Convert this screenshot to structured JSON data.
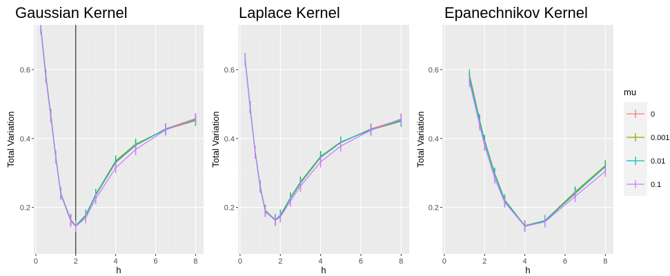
{
  "chart_data": [
    {
      "type": "line",
      "title": "Gaussian Kernel",
      "xlabel": "h",
      "ylabel": "Total Variation",
      "xlim": [
        -0.1,
        8.4
      ],
      "ylim": [
        0.065,
        0.73
      ],
      "xticks": [
        0,
        2,
        4,
        6,
        8
      ],
      "yticks": [
        0.2,
        0.4,
        0.6
      ],
      "xtick_labels": [
        "0",
        "2",
        "4",
        "6",
        "8"
      ],
      "ytick_labels": [
        "0.2",
        "0.4",
        "0.6"
      ],
      "vline": 2,
      "x": [
        0.25,
        0.5,
        0.75,
        1,
        1.25,
        1.75,
        2,
        2.5,
        3,
        4,
        5,
        6.5,
        8
      ],
      "series": [
        {
          "name": "0",
          "values": [
            0.72,
            0.58,
            0.465,
            0.345,
            0.24,
            0.165,
            0.145,
            0.175,
            0.235,
            0.33,
            0.38,
            0.428,
            0.458
          ]
        },
        {
          "name": "0.001",
          "values": [
            0.725,
            0.585,
            0.47,
            0.348,
            0.242,
            0.163,
            0.147,
            0.178,
            0.238,
            0.335,
            0.384,
            0.426,
            0.452
          ]
        },
        {
          "name": "0.01",
          "values": [
            0.722,
            0.582,
            0.468,
            0.346,
            0.24,
            0.162,
            0.146,
            0.176,
            0.236,
            0.332,
            0.381,
            0.427,
            0.455
          ]
        },
        {
          "name": "0.1",
          "values": [
            0.718,
            0.578,
            0.463,
            0.343,
            0.238,
            0.16,
            0.145,
            0.17,
            0.225,
            0.315,
            0.368,
            0.425,
            0.457
          ]
        }
      ]
    },
    {
      "type": "line",
      "title": "Laplace Kernel",
      "xlabel": "h",
      "ylabel": "Total Variation",
      "xlim": [
        -0.1,
        8.4
      ],
      "ylim": [
        0.065,
        0.73
      ],
      "xticks": [
        0,
        2,
        4,
        6,
        8
      ],
      "yticks": [
        0.2,
        0.4,
        0.6
      ],
      "xtick_labels": [
        "0",
        "2",
        "4",
        "6",
        "8"
      ],
      "ytick_labels": [
        "0.2",
        "0.4",
        "0.6"
      ],
      "x": [
        0.25,
        0.5,
        0.75,
        1,
        1.25,
        1.75,
        2,
        2.5,
        3,
        4,
        5,
        6.5,
        8
      ],
      "series": [
        {
          "name": "0",
          "values": [
            0.63,
            0.49,
            0.36,
            0.26,
            0.19,
            0.165,
            0.175,
            0.225,
            0.27,
            0.345,
            0.388,
            0.428,
            0.455
          ]
        },
        {
          "name": "0.001",
          "values": [
            0.632,
            0.492,
            0.362,
            0.262,
            0.192,
            0.163,
            0.178,
            0.228,
            0.274,
            0.348,
            0.39,
            0.425,
            0.45
          ]
        },
        {
          "name": "0.01",
          "values": [
            0.631,
            0.491,
            0.361,
            0.261,
            0.19,
            0.164,
            0.176,
            0.226,
            0.272,
            0.346,
            0.389,
            0.426,
            0.452
          ]
        },
        {
          "name": "0.1",
          "values": [
            0.628,
            0.488,
            0.358,
            0.258,
            0.188,
            0.162,
            0.172,
            0.218,
            0.262,
            0.332,
            0.378,
            0.424,
            0.457
          ]
        }
      ]
    },
    {
      "type": "line",
      "title": "Epanechnikov Kernel",
      "xlabel": "h",
      "ylabel": "Total Variation",
      "xlim": [
        -0.1,
        8.4
      ],
      "ylim": [
        0.065,
        0.73
      ],
      "xticks": [
        0,
        2,
        4,
        6,
        8
      ],
      "yticks": [
        0.2,
        0.4,
        0.6
      ],
      "xtick_labels": [
        "0",
        "2",
        "4",
        "6",
        "8"
      ],
      "ytick_labels": [
        "0.2",
        "0.4",
        "0.6"
      ],
      "x": [
        1.25,
        1.75,
        2,
        2.5,
        3,
        4,
        5,
        6.5,
        8
      ],
      "series": [
        {
          "name": "0",
          "values": [
            0.575,
            0.45,
            0.39,
            0.295,
            0.22,
            0.145,
            0.16,
            0.24,
            0.32
          ]
        },
        {
          "name": "0.001",
          "values": [
            0.585,
            0.455,
            0.395,
            0.3,
            0.222,
            0.147,
            0.162,
            0.245,
            0.322
          ]
        },
        {
          "name": "0.01",
          "values": [
            0.578,
            0.452,
            0.392,
            0.297,
            0.22,
            0.146,
            0.161,
            0.242,
            0.318
          ]
        },
        {
          "name": "0.1",
          "values": [
            0.565,
            0.44,
            0.38,
            0.285,
            0.215,
            0.145,
            0.158,
            0.232,
            0.305
          ]
        }
      ]
    }
  ],
  "legend": {
    "title": "mu",
    "entries": [
      {
        "label": "0",
        "color": "#F8766D"
      },
      {
        "label": "0.001",
        "color": "#7CAE00"
      },
      {
        "label": "0.01",
        "color": "#00BFC4"
      },
      {
        "label": "0.1",
        "color": "#C77CFF"
      }
    ]
  },
  "colors": {
    "panel_background": "#EBEBEB",
    "grid_major": "#FFFFFF",
    "grid_minor": "#F2F2F2",
    "vline": "#000000"
  }
}
